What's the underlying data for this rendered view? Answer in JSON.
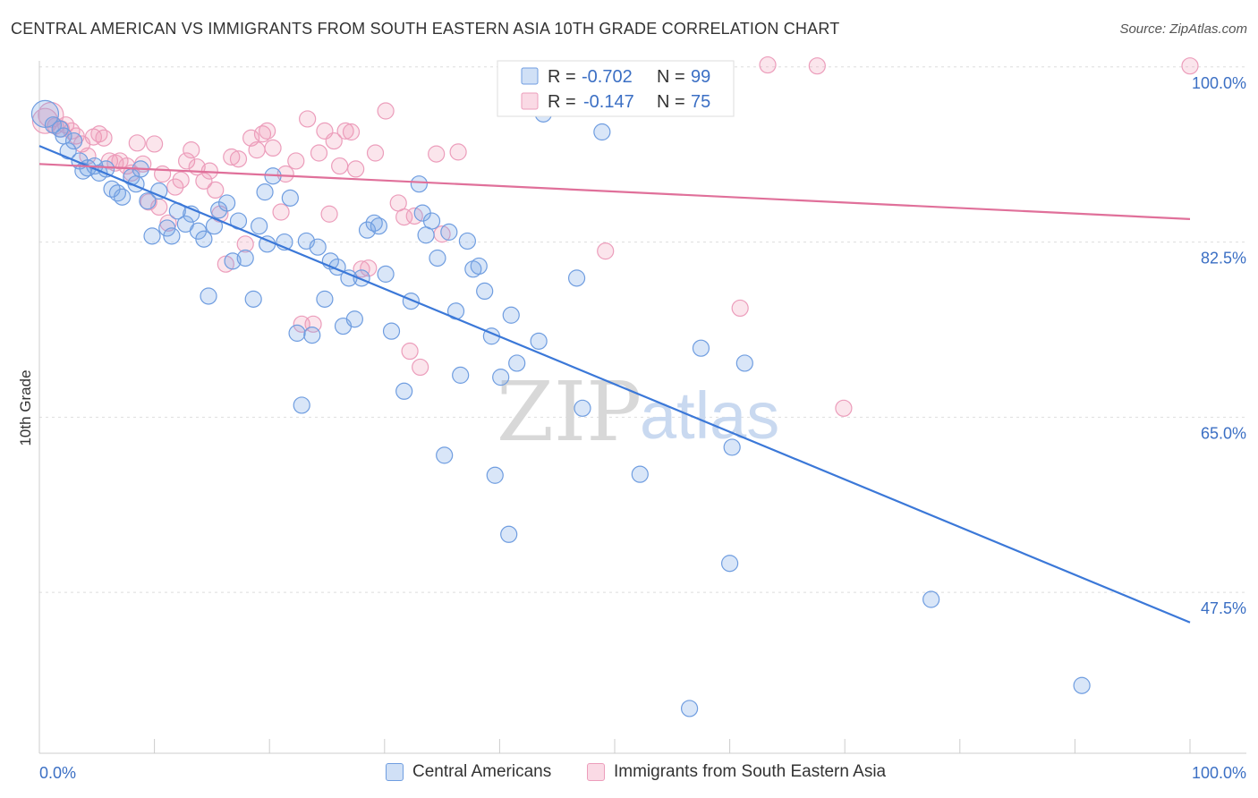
{
  "title": "CENTRAL AMERICAN VS IMMIGRANTS FROM SOUTH EASTERN ASIA 10TH GRADE CORRELATION CHART",
  "source": "Source: ZipAtlas.com",
  "watermark": {
    "zip": "ZIP",
    "atlas": "atlas"
  },
  "colors": {
    "blue": "#3b78d8",
    "blue_fill": "rgba(120,165,230,0.28)",
    "blue_stroke": "#6f9de0",
    "pink": "#e0709a",
    "pink_fill": "rgba(240,150,180,0.25)",
    "pink_stroke": "#ec9dbb",
    "axis_label": "#3b6fc4",
    "grid": "#dddddd"
  },
  "legend": {
    "rows": [
      {
        "r_label": "R = ",
        "r_value": "-0.702",
        "n_label": "N = ",
        "n_value": "99"
      },
      {
        "r_label": "R = ",
        "r_value": "-0.147",
        "n_label": "N = ",
        "n_value": "75"
      }
    ]
  },
  "bottom_legend": {
    "series1": "Central Americans",
    "series2": "Immigrants from South Eastern Asia"
  },
  "chart_data": {
    "type": "scatter",
    "ylabel": "10th Grade",
    "xlim": [
      0,
      100
    ],
    "ylim": [
      32.5,
      101.5
    ],
    "x_tick_labels": {
      "left": "0.0%",
      "right": "100.0%"
    },
    "y_ticks": [
      {
        "value": 100,
        "label": "100.0%"
      },
      {
        "value": 82.5,
        "label": "82.5%"
      },
      {
        "value": 65,
        "label": "65.0%"
      },
      {
        "value": 47.5,
        "label": "47.5%"
      }
    ],
    "grid": true,
    "series": [
      {
        "name": "Central Americans",
        "trend": {
          "x": [
            0,
            100
          ],
          "y": [
            92.1,
            44.5
          ]
        },
        "points": [
          [
            0.5,
            95.3
          ],
          [
            1.2,
            94.2
          ],
          [
            1.8,
            93.8
          ],
          [
            2.1,
            93.1
          ],
          [
            2.5,
            91.6
          ],
          [
            3.0,
            92.6
          ],
          [
            3.5,
            90.6
          ],
          [
            3.8,
            89.6
          ],
          [
            4.2,
            89.9
          ],
          [
            4.8,
            90.1
          ],
          [
            5.2,
            89.4
          ],
          [
            5.8,
            89.8
          ],
          [
            6.3,
            87.8
          ],
          [
            6.8,
            87.4
          ],
          [
            7.2,
            87.0
          ],
          [
            8.0,
            89.0
          ],
          [
            8.4,
            88.3
          ],
          [
            8.8,
            89.8
          ],
          [
            9.4,
            86.6
          ],
          [
            9.8,
            83.1
          ],
          [
            10.4,
            87.6
          ],
          [
            11.1,
            83.9
          ],
          [
            11.5,
            83.1
          ],
          [
            12.0,
            85.6
          ],
          [
            12.7,
            84.3
          ],
          [
            13.2,
            85.3
          ],
          [
            13.8,
            83.6
          ],
          [
            14.3,
            82.8
          ],
          [
            14.7,
            77.1
          ],
          [
            15.2,
            84.1
          ],
          [
            15.6,
            85.7
          ],
          [
            16.3,
            86.4
          ],
          [
            16.8,
            80.6
          ],
          [
            17.3,
            84.6
          ],
          [
            17.9,
            80.9
          ],
          [
            18.6,
            76.8
          ],
          [
            19.1,
            84.1
          ],
          [
            19.6,
            87.5
          ],
          [
            19.8,
            82.3
          ],
          [
            20.3,
            89.1
          ],
          [
            21.3,
            82.5
          ],
          [
            21.8,
            86.9
          ],
          [
            22.4,
            73.4
          ],
          [
            22.8,
            66.2
          ],
          [
            23.2,
            82.6
          ],
          [
            23.7,
            73.2
          ],
          [
            24.2,
            82.0
          ],
          [
            24.8,
            76.8
          ],
          [
            25.3,
            80.6
          ],
          [
            25.9,
            80.0
          ],
          [
            26.4,
            74.1
          ],
          [
            26.9,
            78.9
          ],
          [
            27.4,
            74.8
          ],
          [
            28.0,
            78.9
          ],
          [
            28.5,
            83.7
          ],
          [
            29.1,
            84.4
          ],
          [
            29.5,
            84.1
          ],
          [
            30.1,
            79.3
          ],
          [
            30.6,
            73.6
          ],
          [
            31.7,
            67.6
          ],
          [
            32.3,
            76.6
          ],
          [
            33.0,
            88.3
          ],
          [
            33.3,
            85.4
          ],
          [
            33.6,
            83.2
          ],
          [
            34.1,
            84.6
          ],
          [
            34.6,
            80.9
          ],
          [
            35.2,
            61.2
          ],
          [
            35.6,
            83.5
          ],
          [
            36.2,
            75.6
          ],
          [
            36.6,
            69.2
          ],
          [
            37.2,
            82.6
          ],
          [
            37.7,
            79.8
          ],
          [
            38.2,
            80.1
          ],
          [
            38.7,
            77.6
          ],
          [
            39.3,
            73.1
          ],
          [
            39.6,
            59.2
          ],
          [
            40.1,
            69.0
          ],
          [
            40.8,
            53.3
          ],
          [
            41.0,
            75.2
          ],
          [
            41.5,
            70.4
          ],
          [
            43.4,
            72.6
          ],
          [
            43.8,
            95.3
          ],
          [
            46.7,
            78.9
          ],
          [
            47.2,
            65.9
          ],
          [
            48.9,
            93.5
          ],
          [
            52.2,
            59.3
          ],
          [
            57.5,
            71.9
          ],
          [
            60.0,
            50.4
          ],
          [
            60.2,
            62.0
          ],
          [
            61.3,
            70.4
          ],
          [
            77.5,
            46.8
          ],
          [
            90.6,
            38.2
          ],
          [
            56.5,
            35.9
          ]
        ]
      },
      {
        "name": "Immigrants from South Eastern Asia",
        "trend": {
          "x": [
            0,
            100
          ],
          "y": [
            90.3,
            84.8
          ]
        },
        "points": [
          [
            0.5,
            94.6
          ],
          [
            1.0,
            95.2
          ],
          [
            1.4,
            94.1
          ],
          [
            1.9,
            93.8
          ],
          [
            2.3,
            94.2
          ],
          [
            2.8,
            93.6
          ],
          [
            3.2,
            93.1
          ],
          [
            3.7,
            92.3
          ],
          [
            4.2,
            91.1
          ],
          [
            4.7,
            93.0
          ],
          [
            5.2,
            93.3
          ],
          [
            5.6,
            92.9
          ],
          [
            6.1,
            90.6
          ],
          [
            6.6,
            90.4
          ],
          [
            7.0,
            90.6
          ],
          [
            7.6,
            90.1
          ],
          [
            8.0,
            89.4
          ],
          [
            8.5,
            92.4
          ],
          [
            9.0,
            90.3
          ],
          [
            9.5,
            86.5
          ],
          [
            10.0,
            92.3
          ],
          [
            10.4,
            86.0
          ],
          [
            10.7,
            89.3
          ],
          [
            11.2,
            84.4
          ],
          [
            11.8,
            88.0
          ],
          [
            12.3,
            88.7
          ],
          [
            12.8,
            90.6
          ],
          [
            13.2,
            91.7
          ],
          [
            13.7,
            90.0
          ],
          [
            14.3,
            88.6
          ],
          [
            14.8,
            89.6
          ],
          [
            15.3,
            87.7
          ],
          [
            15.7,
            85.3
          ],
          [
            16.2,
            80.3
          ],
          [
            16.7,
            91.0
          ],
          [
            17.3,
            90.8
          ],
          [
            17.9,
            82.3
          ],
          [
            18.4,
            92.9
          ],
          [
            18.9,
            91.7
          ],
          [
            19.4,
            93.3
          ],
          [
            19.8,
            93.6
          ],
          [
            20.3,
            91.9
          ],
          [
            21.0,
            85.5
          ],
          [
            21.4,
            89.3
          ],
          [
            22.3,
            90.6
          ],
          [
            22.8,
            74.3
          ],
          [
            23.3,
            94.8
          ],
          [
            23.8,
            74.3
          ],
          [
            24.3,
            91.4
          ],
          [
            24.8,
            93.6
          ],
          [
            25.2,
            85.3
          ],
          [
            25.6,
            92.6
          ],
          [
            26.1,
            90.1
          ],
          [
            26.6,
            93.6
          ],
          [
            27.1,
            93.5
          ],
          [
            27.5,
            89.8
          ],
          [
            28.0,
            79.8
          ],
          [
            28.6,
            79.9
          ],
          [
            29.2,
            91.4
          ],
          [
            30.1,
            95.6
          ],
          [
            31.2,
            86.4
          ],
          [
            31.7,
            85.0
          ],
          [
            32.2,
            71.6
          ],
          [
            32.6,
            85.1
          ],
          [
            33.1,
            70.0
          ],
          [
            34.5,
            91.3
          ],
          [
            35.0,
            83.3
          ],
          [
            36.4,
            91.5
          ],
          [
            49.2,
            81.6
          ],
          [
            60.9,
            75.9
          ],
          [
            63.3,
            100.2
          ],
          [
            67.6,
            100.1
          ],
          [
            69.9,
            65.9
          ],
          [
            100.0,
            100.1
          ]
        ]
      }
    ]
  }
}
